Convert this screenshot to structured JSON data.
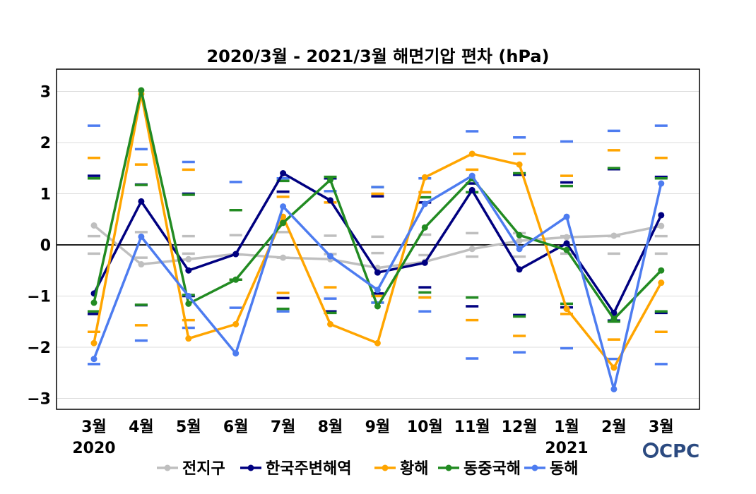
{
  "chart_data": {
    "type": "line",
    "title": "2020/3월 - 2021/3월 해면기압 편차 (hPa)",
    "xlabel": "",
    "ylabel": "",
    "categories": [
      "3월",
      "4월",
      "5월",
      "6월",
      "7월",
      "8월",
      "9월",
      "10월",
      "11월",
      "12월",
      "1월",
      "2월",
      "3월"
    ],
    "year_labels": [
      {
        "index": 0,
        "label": "2020"
      },
      {
        "index": 10,
        "label": "2021"
      }
    ],
    "ylim": [
      -3.25,
      3.5
    ],
    "yticks": [
      -3,
      -2,
      -1,
      0,
      1,
      2,
      3
    ],
    "ytick_labels": [
      "−3",
      "−2",
      "−1",
      "0",
      "1",
      "2",
      "3"
    ],
    "grid": true,
    "legend_position": "bottom",
    "series": [
      {
        "name": "전지구",
        "color": "#bfbfbf",
        "values": [
          0.38,
          -0.38,
          -0.28,
          -0.18,
          -0.25,
          -0.28,
          -0.45,
          -0.33,
          -0.08,
          0.08,
          0.15,
          0.18,
          0.37
        ],
        "std": [
          0.17,
          0.25,
          0.17,
          0.19,
          0.25,
          0.18,
          0.16,
          0.2,
          0.23,
          0.23,
          0.17,
          0.17,
          0.17
        ]
      },
      {
        "name": "한국주변해역",
        "color": "#000080",
        "values": [
          -0.95,
          0.85,
          -0.5,
          -0.18,
          1.4,
          0.87,
          -0.54,
          -0.35,
          1.07,
          -0.48,
          0.03,
          -1.33,
          0.58
        ],
        "std": [
          1.35,
          1.18,
          1.0,
          0.68,
          1.04,
          1.3,
          0.95,
          0.83,
          1.2,
          1.37,
          1.22,
          1.48,
          1.33
        ]
      },
      {
        "name": "황해",
        "color": "#ffa500",
        "values": [
          -1.92,
          2.95,
          -1.83,
          -1.55,
          0.55,
          -1.55,
          -1.92,
          1.32,
          1.78,
          1.57,
          -1.25,
          -2.4,
          -0.74
        ],
        "std": [
          1.7,
          1.57,
          1.47,
          0.68,
          0.94,
          0.83,
          1.0,
          1.03,
          1.47,
          1.78,
          1.35,
          1.85,
          1.7
        ]
      },
      {
        "name": "동중국해",
        "color": "#228b22",
        "values": [
          -1.13,
          3.02,
          -1.15,
          -0.68,
          0.43,
          1.27,
          -1.2,
          0.34,
          1.3,
          0.19,
          -0.1,
          -1.45,
          -0.5
        ],
        "std": [
          1.3,
          1.17,
          0.98,
          0.68,
          1.25,
          1.33,
          1.13,
          0.93,
          1.03,
          1.4,
          1.15,
          1.5,
          1.3
        ]
      },
      {
        "name": "동해",
        "color": "#4d7cf0",
        "values": [
          -2.23,
          0.16,
          -1.0,
          -2.12,
          0.75,
          -0.22,
          -0.88,
          0.8,
          1.35,
          -0.08,
          0.55,
          -2.82,
          1.2
        ],
        "std": [
          2.33,
          1.87,
          1.62,
          1.23,
          1.3,
          1.05,
          1.13,
          1.3,
          2.22,
          2.1,
          2.02,
          2.23,
          2.33
        ]
      }
    ]
  },
  "logo": "CPC"
}
